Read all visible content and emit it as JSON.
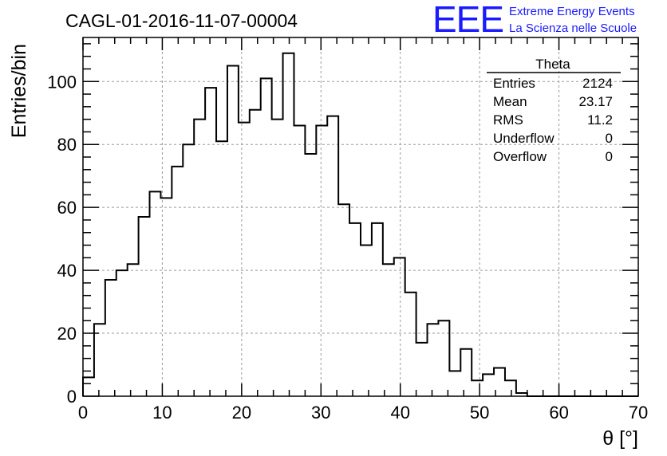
{
  "chart_data": {
    "type": "bar",
    "title": "CAGL-01-2016-11-07-00004",
    "xlabel": "θ [°]",
    "ylabel": "Entries/bin",
    "xlim": [
      0,
      70
    ],
    "ylim": [
      0,
      114
    ],
    "grid": true,
    "bin_width": 1.4,
    "x_ticks": [
      0,
      10,
      20,
      30,
      40,
      50,
      60,
      70
    ],
    "y_ticks": [
      0,
      20,
      40,
      60,
      80,
      100
    ],
    "values": [
      6,
      23,
      37,
      40,
      42,
      57,
      65,
      63,
      73,
      80,
      88,
      98,
      81,
      105,
      87,
      91,
      101,
      88,
      109,
      86,
      77,
      86,
      89,
      61,
      55,
      48,
      55,
      42,
      44,
      33,
      17,
      23,
      24,
      8,
      15,
      5,
      7,
      9,
      5,
      1,
      0,
      0,
      0,
      0,
      0,
      0,
      0,
      0,
      0,
      0
    ],
    "legend": "top-right",
    "stats": {
      "name": "Theta",
      "rows": [
        {
          "label": "Entries",
          "value": "2124"
        },
        {
          "label": "Mean",
          "value": "23.17"
        },
        {
          "label": "RMS",
          "value": "11.2"
        },
        {
          "label": "Underflow",
          "value": "0"
        },
        {
          "label": "Overflow",
          "value": "0"
        }
      ]
    }
  },
  "logo": {
    "mark": "EEE",
    "line1": "Extreme Energy Events",
    "line2": "La Scienza nelle Scuole",
    "color": "#1a1aff"
  }
}
